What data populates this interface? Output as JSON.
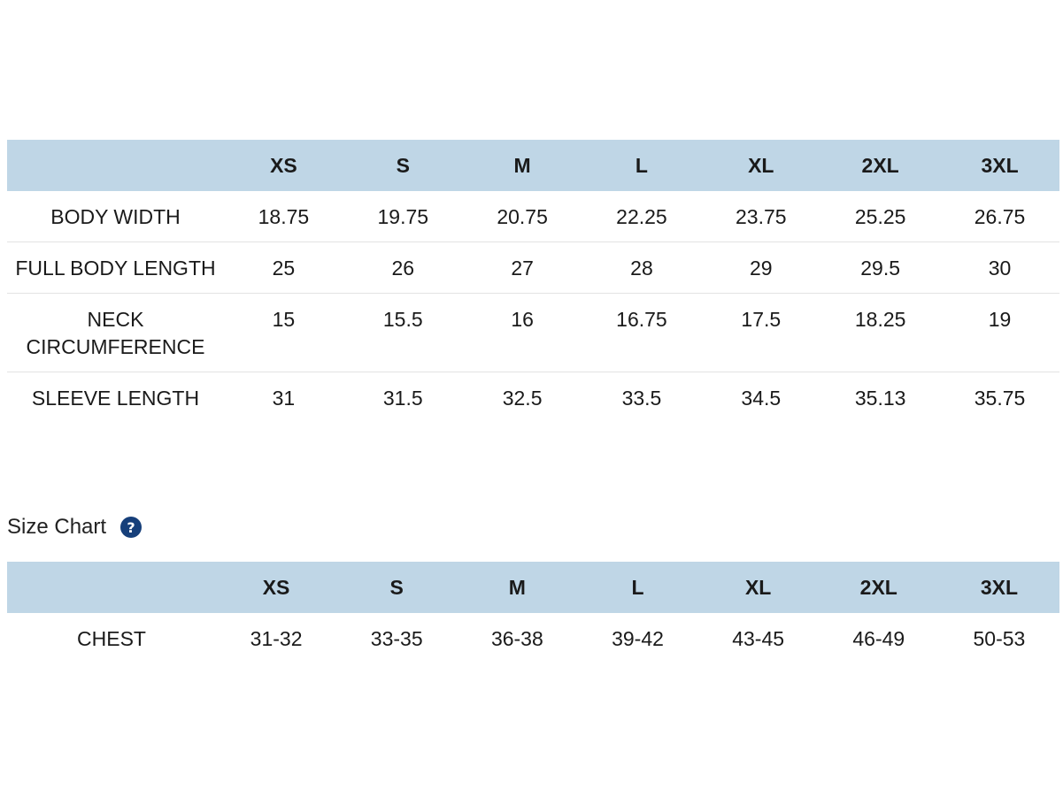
{
  "measurements_table": {
    "headers": [
      "",
      "XS",
      "S",
      "M",
      "L",
      "XL",
      "2XL",
      "3XL"
    ],
    "rows": [
      {
        "label": "BODY WIDTH",
        "values": [
          "18.75",
          "19.75",
          "20.75",
          "22.25",
          "23.75",
          "25.25",
          "26.75"
        ]
      },
      {
        "label": "FULL BODY LENGTH",
        "values": [
          "25",
          "26",
          "27",
          "28",
          "29",
          "29.5",
          "30"
        ]
      },
      {
        "label": "NECK CIRCUMFERENCE",
        "values": [
          "15",
          "15.5",
          "16",
          "16.75",
          "17.5",
          "18.25",
          "19"
        ]
      },
      {
        "label": "SLEEVE LENGTH",
        "values": [
          "31",
          "31.5",
          "32.5",
          "33.5",
          "34.5",
          "35.13",
          "35.75"
        ]
      }
    ]
  },
  "size_chart": {
    "title": "Size Chart",
    "help_icon": "?",
    "headers": [
      "",
      "XS",
      "S",
      "M",
      "L",
      "XL",
      "2XL",
      "3XL"
    ],
    "rows": [
      {
        "label": "CHEST",
        "values": [
          "31-32",
          "33-35",
          "36-38",
          "39-42",
          "43-45",
          "46-49",
          "50-53"
        ]
      }
    ]
  },
  "colors": {
    "header_bg": "#bfd6e6",
    "help_icon_bg": "#163f7a"
  }
}
